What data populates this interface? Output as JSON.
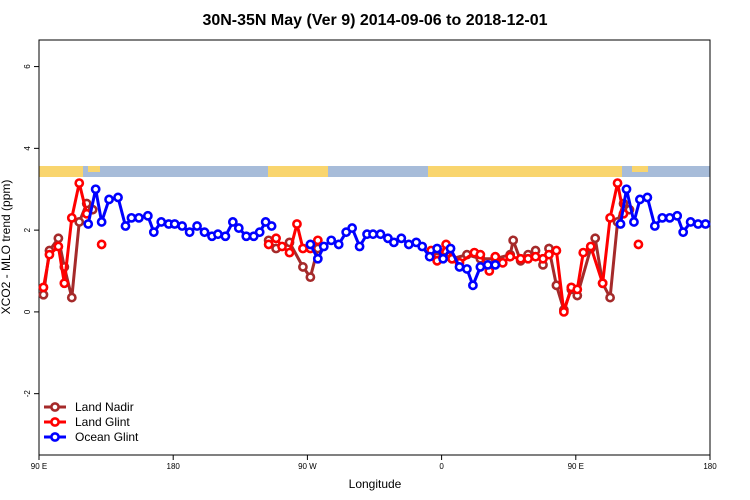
{
  "chart_data": {
    "type": "line",
    "title": "30N-35N May (Ver 9)   2014-09-06 to 2018-12-01",
    "x_label": "Longitude",
    "y_label": "XCO2 - MLO trend (ppm)",
    "xlim": [
      90,
      540
    ],
    "xticks": [
      {
        "value": 90,
        "label": "90 E"
      },
      180,
      {
        "value": 270,
        "label": "90 W"
      },
      {
        "value": 360,
        "label": "0"
      },
      {
        "value": 450,
        "label": "90 E"
      },
      {
        "value": 540,
        "label": "180"
      }
    ],
    "ylim": [
      -3.5,
      6.65
    ],
    "yticks": [
      -2,
      0,
      2,
      4,
      6
    ],
    "legend": "bottom-left",
    "series": [
      {
        "name": "Land Nadir",
        "color": "#a52a2a",
        "x": [
          93,
          97,
          103,
          107,
          112,
          117,
          122,
          126,
          null,
          244,
          249,
          258,
          267,
          272,
          277,
          null,
          357,
          367,
          377,
          386,
          396,
          406,
          408,
          413,
          418,
          423,
          428,
          432,
          437,
          442,
          447,
          451,
          460,
          463,
          468,
          473,
          478,
          482,
          486
        ],
        "values": [
          0.42,
          1.5,
          1.8,
          1.1,
          0.35,
          2.2,
          2.65,
          2.5,
          null,
          1.75,
          1.55,
          1.7,
          1.1,
          0.85,
          1.55,
          null,
          1.5,
          1.3,
          1.4,
          1.3,
          1.3,
          1.4,
          1.75,
          1.25,
          1.4,
          1.5,
          1.15,
          1.55,
          0.65,
          0.05,
          0.55,
          0.4,
          1.55,
          1.8,
          0.7,
          0.35,
          2.2,
          2.65,
          2.5
        ]
      },
      {
        "name": "Land Glint",
        "color": "#ff0000",
        "x": [
          93,
          97,
          103,
          107,
          112,
          117,
          122,
          null,
          132,
          null,
          244,
          249,
          253,
          258,
          263,
          267,
          272,
          277,
          null,
          353,
          357,
          363,
          367,
          372,
          382,
          386,
          392,
          396,
          401,
          406,
          413,
          418,
          423,
          428,
          432,
          437,
          442,
          447,
          451,
          455,
          460,
          468,
          473,
          478,
          482,
          null,
          492
        ],
        "values": [
          0.6,
          1.4,
          1.6,
          0.7,
          2.3,
          3.15,
          2.4,
          null,
          1.65,
          null,
          1.65,
          1.8,
          1.6,
          1.45,
          2.15,
          1.55,
          1.55,
          1.75,
          null,
          1.5,
          1.25,
          1.65,
          1.3,
          1.2,
          1.45,
          1.4,
          1.0,
          1.35,
          1.2,
          1.35,
          1.3,
          1.3,
          1.35,
          1.3,
          1.4,
          1.5,
          0.0,
          0.6,
          0.55,
          1.45,
          1.6,
          0.7,
          2.3,
          3.15,
          2.4,
          null,
          1.65
        ]
      },
      {
        "name": "Ocean Glint",
        "color": "#0000ff",
        "x": [
          123,
          128,
          132,
          137,
          143,
          148,
          152,
          157,
          163,
          167,
          172,
          177,
          181,
          186,
          191,
          196,
          201,
          206,
          210,
          215,
          220,
          224,
          229,
          234,
          238,
          242,
          246,
          null,
          272,
          277,
          281,
          286,
          291,
          296,
          300,
          305,
          310,
          314,
          319,
          324,
          328,
          333,
          338,
          343,
          347,
          352,
          357,
          361,
          366,
          372,
          377,
          381,
          386,
          391,
          396,
          null,
          480,
          484,
          489,
          493,
          498,
          503,
          508,
          513,
          518,
          522,
          527,
          532,
          537
        ],
        "values": [
          2.15,
          3.0,
          2.2,
          2.75,
          2.8,
          2.1,
          2.3,
          2.3,
          2.35,
          1.95,
          2.2,
          2.15,
          2.15,
          2.1,
          1.95,
          2.1,
          1.95,
          1.85,
          1.9,
          1.85,
          2.2,
          2.05,
          1.85,
          1.85,
          1.95,
          2.2,
          2.1,
          null,
          1.65,
          1.3,
          1.6,
          1.75,
          1.65,
          1.95,
          2.05,
          1.6,
          1.9,
          1.9,
          1.9,
          1.8,
          1.7,
          1.8,
          1.65,
          1.7,
          1.6,
          1.35,
          1.55,
          1.3,
          1.55,
          1.1,
          1.05,
          0.65,
          1.1,
          1.15,
          1.15,
          null,
          2.15,
          3.0,
          2.2,
          2.75,
          2.8,
          2.1,
          2.3,
          2.3,
          2.35,
          1.95,
          2.2,
          2.15,
          2.15
        ]
      }
    ]
  }
}
